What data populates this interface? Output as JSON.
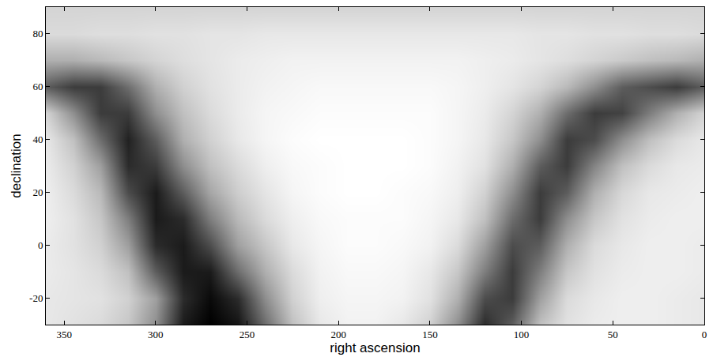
{
  "chart_data": {
    "type": "heatmap",
    "xlabel": "right ascension",
    "ylabel": "declination",
    "xlim": [
      360,
      0
    ],
    "ylim": [
      -30,
      90
    ],
    "xticks": [
      350,
      300,
      250,
      200,
      150,
      100,
      50,
      0
    ],
    "yticks": [
      -20,
      0,
      20,
      40,
      60,
      80
    ],
    "x": [
      0,
      15,
      30,
      45,
      60,
      75,
      90,
      105,
      120,
      135,
      150,
      165,
      180,
      195,
      210,
      225,
      240,
      255,
      270,
      285,
      300,
      315,
      330,
      345,
      360
    ],
    "y": [
      -30,
      -20,
      -10,
      0,
      10,
      20,
      30,
      40,
      50,
      60,
      70,
      80,
      90
    ],
    "z": [
      [
        0.72,
        0.73,
        0.74,
        0.74,
        0.73,
        0.7,
        0.6,
        0.3,
        0.15,
        0.45,
        0.65,
        0.72,
        0.75,
        0.75,
        0.72,
        0.6,
        0.35,
        0.08,
        0.02,
        0.1,
        0.45,
        0.62,
        0.68,
        0.7,
        0.72
      ],
      [
        0.72,
        0.73,
        0.74,
        0.74,
        0.72,
        0.68,
        0.5,
        0.2,
        0.25,
        0.55,
        0.7,
        0.75,
        0.76,
        0.76,
        0.74,
        0.65,
        0.45,
        0.15,
        0.05,
        0.15,
        0.5,
        0.65,
        0.7,
        0.71,
        0.72
      ],
      [
        0.73,
        0.74,
        0.74,
        0.73,
        0.7,
        0.62,
        0.4,
        0.2,
        0.4,
        0.62,
        0.72,
        0.76,
        0.77,
        0.77,
        0.75,
        0.68,
        0.55,
        0.35,
        0.1,
        0.1,
        0.3,
        0.6,
        0.68,
        0.71,
        0.73
      ],
      [
        0.73,
        0.74,
        0.74,
        0.72,
        0.68,
        0.55,
        0.3,
        0.25,
        0.5,
        0.68,
        0.75,
        0.77,
        0.78,
        0.78,
        0.76,
        0.72,
        0.62,
        0.5,
        0.25,
        0.1,
        0.15,
        0.5,
        0.65,
        0.7,
        0.73
      ],
      [
        0.74,
        0.74,
        0.73,
        0.7,
        0.62,
        0.45,
        0.2,
        0.35,
        0.6,
        0.72,
        0.76,
        0.78,
        0.78,
        0.78,
        0.77,
        0.74,
        0.68,
        0.58,
        0.4,
        0.15,
        0.1,
        0.4,
        0.62,
        0.7,
        0.74
      ],
      [
        0.74,
        0.73,
        0.72,
        0.67,
        0.55,
        0.3,
        0.2,
        0.45,
        0.65,
        0.74,
        0.77,
        0.78,
        0.79,
        0.79,
        0.78,
        0.76,
        0.71,
        0.64,
        0.52,
        0.3,
        0.1,
        0.25,
        0.58,
        0.68,
        0.74
      ],
      [
        0.73,
        0.72,
        0.68,
        0.6,
        0.42,
        0.2,
        0.3,
        0.55,
        0.7,
        0.75,
        0.78,
        0.79,
        0.79,
        0.79,
        0.78,
        0.77,
        0.74,
        0.68,
        0.6,
        0.45,
        0.2,
        0.15,
        0.5,
        0.65,
        0.73
      ],
      [
        0.72,
        0.68,
        0.6,
        0.45,
        0.25,
        0.2,
        0.45,
        0.62,
        0.72,
        0.76,
        0.78,
        0.79,
        0.79,
        0.79,
        0.79,
        0.78,
        0.76,
        0.72,
        0.65,
        0.55,
        0.3,
        0.12,
        0.35,
        0.6,
        0.72
      ],
      [
        0.66,
        0.55,
        0.4,
        0.22,
        0.2,
        0.35,
        0.55,
        0.66,
        0.73,
        0.76,
        0.78,
        0.78,
        0.78,
        0.78,
        0.78,
        0.77,
        0.76,
        0.73,
        0.68,
        0.6,
        0.45,
        0.2,
        0.2,
        0.45,
        0.66
      ],
      [
        0.3,
        0.2,
        0.25,
        0.3,
        0.45,
        0.58,
        0.66,
        0.71,
        0.74,
        0.76,
        0.77,
        0.77,
        0.77,
        0.77,
        0.77,
        0.76,
        0.75,
        0.73,
        0.7,
        0.65,
        0.55,
        0.35,
        0.2,
        0.2,
        0.3
      ],
      [
        0.55,
        0.58,
        0.6,
        0.63,
        0.66,
        0.69,
        0.71,
        0.73,
        0.74,
        0.75,
        0.75,
        0.75,
        0.75,
        0.75,
        0.75,
        0.75,
        0.74,
        0.73,
        0.71,
        0.69,
        0.66,
        0.62,
        0.58,
        0.55,
        0.55
      ],
      [
        0.68,
        0.69,
        0.69,
        0.7,
        0.7,
        0.71,
        0.71,
        0.72,
        0.72,
        0.72,
        0.72,
        0.72,
        0.72,
        0.72,
        0.72,
        0.72,
        0.72,
        0.71,
        0.71,
        0.7,
        0.7,
        0.69,
        0.69,
        0.68,
        0.68
      ],
      [
        0.66,
        0.66,
        0.66,
        0.66,
        0.66,
        0.66,
        0.66,
        0.66,
        0.66,
        0.66,
        0.66,
        0.66,
        0.66,
        0.66,
        0.66,
        0.66,
        0.66,
        0.66,
        0.66,
        0.66,
        0.66,
        0.66,
        0.66,
        0.66,
        0.66
      ]
    ]
  }
}
